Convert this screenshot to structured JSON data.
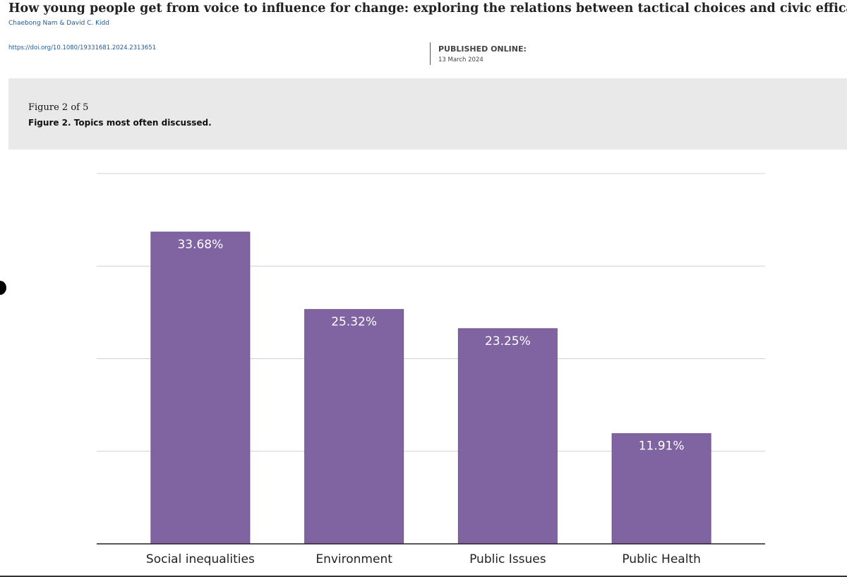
{
  "header": {
    "title": "How young people get from voice to influence for change: exploring the relations between tactical choices and civic efficacy",
    "authors": "Chaebong Nam & David C. Kidd",
    "doi": "https://doi.org/10.1080/19331681.2024.2313651",
    "published_label": "PUBLISHED ONLINE:",
    "published_date": "13 March 2024"
  },
  "figure": {
    "counter": "Figure 2 of 5",
    "caption": "Figure 2. Topics most often discussed."
  },
  "chart_data": {
    "type": "bar",
    "categories": [
      "Social inequalities",
      "Environment",
      "Public Issues",
      "Public Health"
    ],
    "values": [
      33.68,
      25.32,
      23.25,
      11.91
    ],
    "value_labels": [
      "33.68%",
      "25.32%",
      "23.25%",
      "11.91%"
    ],
    "color": "#8064a2",
    "ylim": [
      0,
      40
    ],
    "yticks": [
      0,
      10,
      20,
      30,
      40
    ],
    "grid": true
  }
}
